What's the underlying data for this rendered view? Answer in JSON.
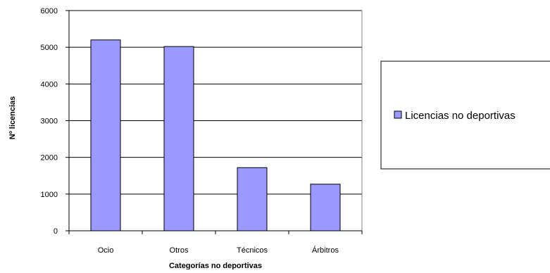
{
  "chart_data": {
    "type": "bar",
    "categories": [
      "Ocio",
      "Otros",
      "Técnicos",
      "Árbitros"
    ],
    "series": [
      {
        "name": "Licencias no deportivas",
        "values": [
          5200,
          5020,
          1720,
          1270
        ],
        "color": "#9999ff"
      }
    ],
    "xlabel": "Categorías no deportivas",
    "ylabel": "Nº licencias",
    "ylim": [
      0,
      6000
    ],
    "yticks": [
      0,
      1000,
      2000,
      3000,
      4000,
      5000,
      6000
    ],
    "grid": true,
    "legend_position": "right"
  }
}
